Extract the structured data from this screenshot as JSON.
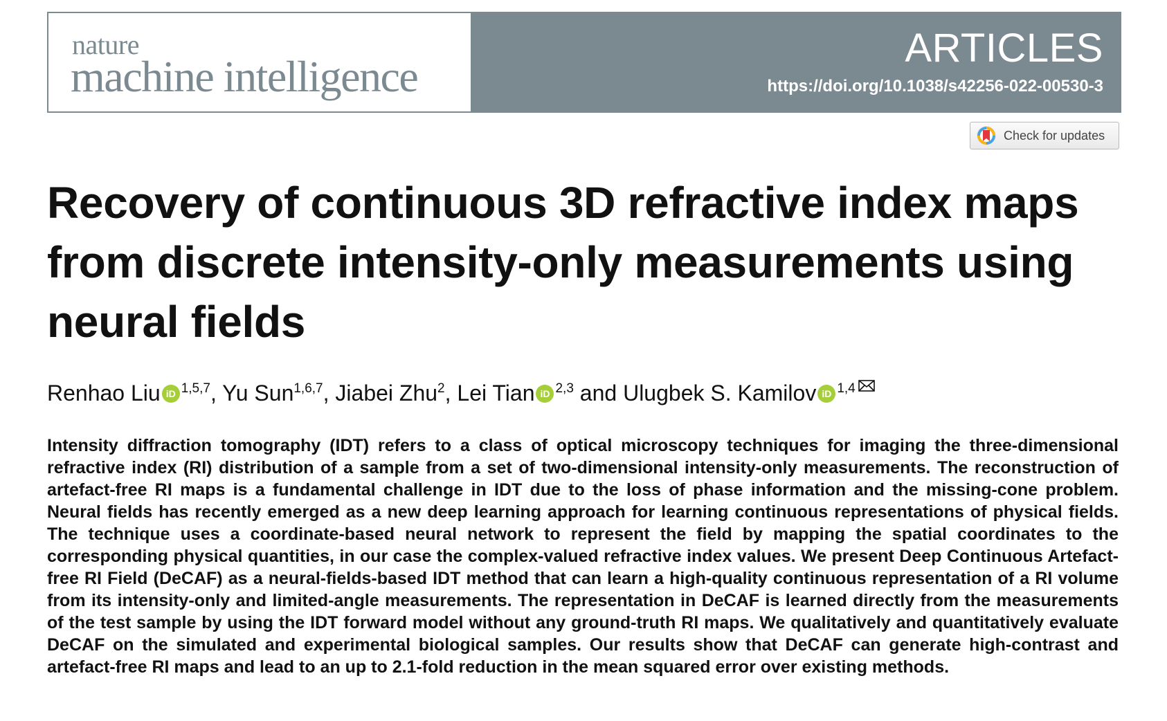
{
  "masthead": {
    "journal_small": "nature",
    "journal_large": "machine intelligence",
    "article_type": "ARTICLES",
    "doi": "https://doi.org/10.1038/s42256-022-00530-3",
    "colors": {
      "band": "#7b8a91",
      "band_text": "#ffffff"
    }
  },
  "check_updates": {
    "label": "Check for updates",
    "icon": "crossmark-icon"
  },
  "title": "Recovery of continuous 3D refractive index maps from discrete intensity-only measurements using neural fields",
  "authors": [
    {
      "name": "Renhao Liu",
      "orcid": true,
      "affiliations": "1,5,7",
      "sep": ", "
    },
    {
      "name": "Yu Sun",
      "orcid": false,
      "affiliations": "1,6,7",
      "sep": ", "
    },
    {
      "name": "Jiabei Zhu",
      "orcid": false,
      "affiliations": "2",
      "sep": ", "
    },
    {
      "name": "Lei Tian",
      "orcid": true,
      "affiliations": "2,3",
      "sep": " and "
    },
    {
      "name": "Ulugbek S. Kamilov",
      "orcid": true,
      "affiliations": "1,4",
      "sep": "",
      "corresponding": true
    }
  ],
  "orcid_label": "iD",
  "orcid_color": "#a6ce39",
  "abstract": "Intensity diffraction tomography (IDT) refers to a class of optical microscopy techniques for imaging the three-dimensional refractive index (RI) distribution of a sample from a set of two-dimensional intensity-only measurements. The reconstruction of artefact-free RI maps is a fundamental challenge in IDT due to the loss of phase information and the missing-cone prob­lem. Neural fields has recently emerged as a new deep learning approach for learning continuous representations of physical fields. The technique uses a coordinate-based neural network to represent the field by mapping the spatial coordinates to the corresponding physical quantities, in our case the complex-valued refractive index values. We present Deep Continuous Artefact-free RI Field (DeCAF) as a neural-fields-based IDT method that can learn a high-quality continuous representation of a RI volume from its intensity-only and limited-angle measurements. The representation in DeCAF is learned directly from the measurements of the test sample by using the IDT forward model without any ground-truth RI maps. We qualitatively and quantitatively evaluate DeCAF on the simulated and experimental biological samples. Our results show that DeCAF can gen­erate high-contrast and artefact-free RI maps and lead to an up to 2.1-fold reduction in the mean squared error over existing methods."
}
